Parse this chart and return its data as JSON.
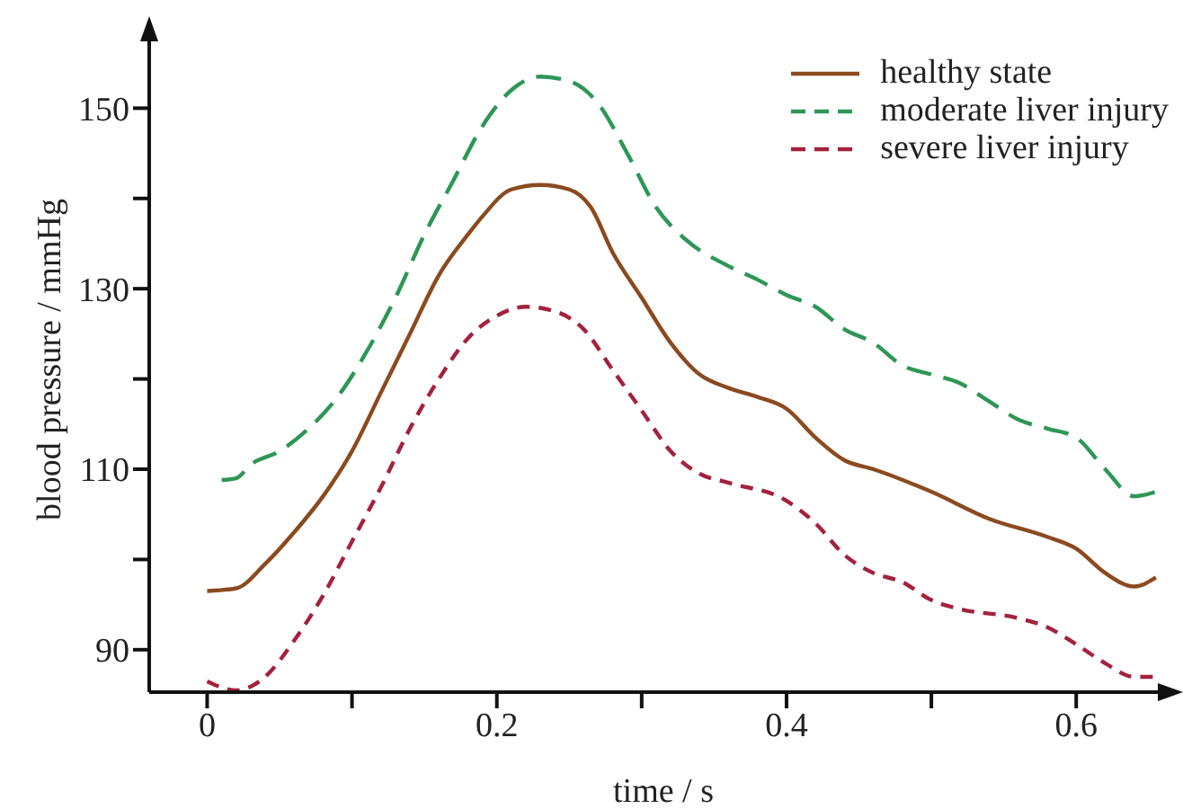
{
  "chart_data": {
    "type": "line",
    "xlabel": "time / s",
    "ylabel": "blood pressure / mmHg",
    "xlim": [
      -0.04,
      0.67
    ],
    "ylim": [
      85.3,
      159
    ],
    "xticks": [
      0,
      {
        "value": 0.1,
        "label": null
      },
      0.2,
      {
        "value": 0.3,
        "label": null
      },
      0.4,
      {
        "value": 0.5,
        "label": null
      },
      0.6
    ],
    "yticks": [
      90,
      {
        "value": 100,
        "label": null
      },
      110,
      {
        "value": 120,
        "label": null
      },
      130,
      {
        "value": 140,
        "label": null
      },
      150
    ],
    "grid": false,
    "legend": "top right",
    "marker": "none",
    "series": [
      {
        "name": "healthy state",
        "color": "#8b4a1f",
        "line_style": "solid",
        "x": [
          0,
          0.02,
          0.04,
          0.06,
          0.08,
          0.1,
          0.12,
          0.14,
          0.16,
          0.18,
          0.19,
          0.21,
          0.23,
          0.25,
          0.265,
          0.28,
          0.3,
          0.32,
          0.34,
          0.36,
          0.38,
          0.4,
          0.42,
          0.44,
          0.46,
          0.5,
          0.54,
          0.58,
          0.6,
          0.62,
          0.64,
          0.655
        ],
        "values": [
          96.5,
          96.8,
          99.5,
          103,
          107,
          112,
          118.5,
          125,
          131.5,
          136,
          138,
          141,
          141.5,
          141,
          139,
          134,
          129,
          124,
          120.5,
          119,
          118,
          116.7,
          113.5,
          111,
          110,
          107.5,
          104.5,
          102.5,
          101.2,
          98.5,
          97,
          98
        ]
      },
      {
        "name": "moderate liver injury",
        "color": "#2e9656",
        "line_style": "dashed",
        "x": [
          0.01,
          0.02,
          0.03,
          0.05,
          0.07,
          0.09,
          0.11,
          0.13,
          0.15,
          0.17,
          0.19,
          0.21,
          0.23,
          0.25,
          0.27,
          0.29,
          0.31,
          0.33,
          0.36,
          0.38,
          0.4,
          0.42,
          0.44,
          0.46,
          0.48,
          0.5,
          0.52,
          0.54,
          0.56,
          0.58,
          0.6,
          0.62,
          0.64,
          0.655
        ],
        "values": [
          108.8,
          109,
          110.5,
          112,
          114.5,
          118,
          123,
          129,
          136,
          142,
          148,
          152,
          153.5,
          153,
          150.5,
          145,
          139,
          135.5,
          132.5,
          131,
          129.3,
          128,
          125.5,
          124,
          121.5,
          120.5,
          119.5,
          117.5,
          115.5,
          114.5,
          113.5,
          110,
          107,
          107.5
        ]
      },
      {
        "name": "severe liver injury",
        "color": "#a3223d",
        "line_style": "dashed",
        "x": [
          0,
          0.02,
          0.04,
          0.06,
          0.08,
          0.1,
          0.12,
          0.14,
          0.16,
          0.18,
          0.2,
          0.22,
          0.24,
          0.26,
          0.28,
          0.3,
          0.32,
          0.34,
          0.36,
          0.4,
          0.42,
          0.44,
          0.46,
          0.48,
          0.5,
          0.52,
          0.56,
          0.58,
          0.6,
          0.62,
          0.64,
          0.655
        ],
        "values": [
          86.5,
          85.5,
          87,
          91,
          96,
          102,
          108,
          114.5,
          120,
          124.5,
          127,
          128,
          127.5,
          125.5,
          121,
          116.5,
          112,
          109.5,
          108.5,
          106.5,
          104,
          100.5,
          98.5,
          97.5,
          95.5,
          94.5,
          93.5,
          92.5,
          90.6,
          88.5,
          87,
          87
        ]
      }
    ]
  }
}
